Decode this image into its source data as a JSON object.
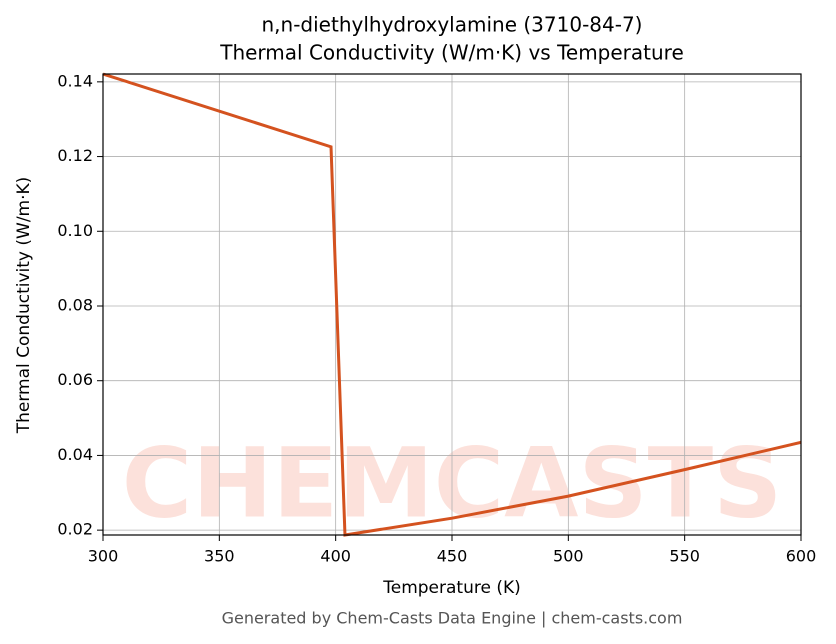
{
  "chart_data": {
    "type": "line",
    "title": "n,n-diethylhydroxylamine (3710-84-7)",
    "subtitle": "Thermal Conductivity (W/m·K) vs Temperature",
    "x_label": "Temperature (K)",
    "y_label": "Thermal Conductivity (W/m·K)",
    "footer": "Generated by Chem-Casts Data Engine | chem-casts.com",
    "watermark": "CHEMCASTS",
    "x": [
      300,
      398,
      404,
      450,
      500,
      550,
      600
    ],
    "series": [
      {
        "name": "Thermal Conductivity",
        "color": "#d4521f",
        "values": [
          0.1421,
          0.1226,
          0.0187,
          0.0232,
          0.0291,
          0.0362,
          0.0435
        ]
      }
    ],
    "xlim": [
      300,
      600
    ],
    "xticks": [
      300,
      350,
      400,
      450,
      500,
      550,
      600
    ],
    "ylim": [
      0.0187,
      0.1421
    ],
    "yticks": [
      0.02,
      0.04,
      0.06,
      0.08,
      {
        "value": 0.1,
        "label": "0.10"
      },
      0.12,
      0.14
    ],
    "grid": true
  }
}
